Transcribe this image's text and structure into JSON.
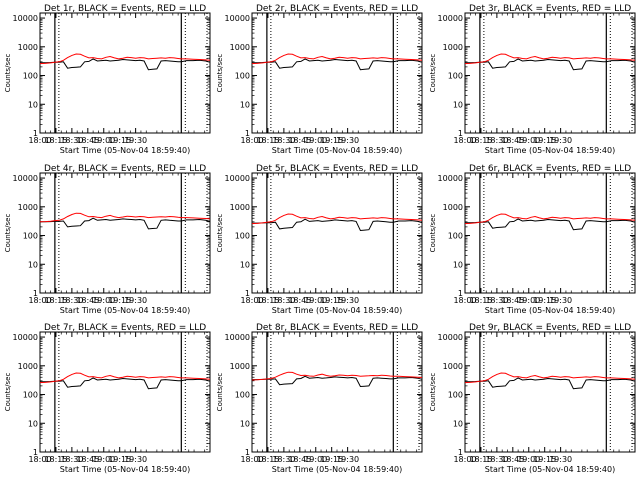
{
  "chart_data": {
    "type": "line",
    "y_scale": "log",
    "ylim": [
      1,
      15000
    ],
    "x_range": [
      "18:00",
      "20:40"
    ],
    "x_tick_labels": [
      "18:00",
      "18:15",
      "18:30",
      "18:45",
      "19:00",
      "19:15",
      "19:30"
    ],
    "y_tick_labels": [
      "1",
      "10",
      "100",
      "1000",
      "10000"
    ],
    "ylabel": "Counts/sec",
    "xlabel": "Start Time (05-Nov-04 18:59:40)",
    "series_colors": {
      "events": "#000000",
      "lld": "#ff0000"
    },
    "boundary_times": [
      "18:14",
      "20:13"
    ],
    "time_points": [
      "18:00",
      "18:05",
      "18:10",
      "18:14",
      "18:18",
      "18:22",
      "18:26",
      "18:30",
      "18:34",
      "18:38",
      "18:42",
      "18:46",
      "18:50",
      "18:54",
      "18:58",
      "19:02",
      "19:06",
      "19:10",
      "19:14",
      "19:18",
      "19:22",
      "19:26",
      "19:30",
      "19:34",
      "19:38",
      "19:42",
      "19:46",
      "19:50",
      "19:54",
      "19:58",
      "20:02",
      "20:06",
      "20:10",
      "20:13",
      "20:18",
      "20:24",
      "20:30",
      "20:36",
      "20:40"
    ],
    "panels": [
      {
        "title": "Det 1r, BLACK = Events, RED = LLD",
        "events": [
          280,
          280,
          285,
          290,
          290,
          300,
          180,
          190,
          195,
          200,
          300,
          310,
          380,
          320,
          330,
          340,
          320,
          330,
          340,
          360,
          350,
          340,
          330,
          340,
          320,
          160,
          165,
          170,
          320,
          330,
          320,
          310,
          300,
          300,
          330,
          330,
          340,
          320,
          290
        ],
        "lld": [
          260,
          265,
          275,
          290,
          300,
          340,
          420,
          500,
          560,
          550,
          470,
          410,
          420,
          390,
          380,
          430,
          460,
          410,
          380,
          400,
          430,
          420,
          400,
          420,
          410,
          380,
          390,
          400,
          410,
          400,
          420,
          410,
          390,
          380,
          380,
          370,
          360,
          350,
          340
        ]
      },
      {
        "title": "Det 2r, BLACK = Events, RED = LLD",
        "events": [
          280,
          280,
          285,
          290,
          290,
          300,
          180,
          190,
          195,
          200,
          300,
          310,
          380,
          320,
          330,
          340,
          320,
          330,
          340,
          360,
          350,
          340,
          330,
          340,
          320,
          160,
          165,
          170,
          320,
          330,
          320,
          310,
          300,
          300,
          330,
          330,
          340,
          320,
          290
        ],
        "lld": [
          260,
          265,
          275,
          290,
          300,
          340,
          420,
          500,
          560,
          550,
          470,
          410,
          420,
          390,
          380,
          430,
          460,
          410,
          380,
          400,
          430,
          420,
          400,
          420,
          410,
          380,
          390,
          400,
          410,
          400,
          420,
          410,
          390,
          380,
          380,
          370,
          360,
          350,
          340
        ]
      },
      {
        "title": "Det 3r, BLACK = Events, RED = LLD",
        "events": [
          280,
          280,
          285,
          290,
          290,
          300,
          180,
          190,
          195,
          200,
          300,
          310,
          380,
          320,
          330,
          340,
          320,
          330,
          340,
          360,
          350,
          340,
          330,
          340,
          320,
          160,
          165,
          170,
          320,
          330,
          320,
          310,
          300,
          300,
          330,
          330,
          340,
          320,
          290
        ],
        "lld": [
          260,
          265,
          275,
          290,
          300,
          340,
          420,
          500,
          560,
          550,
          470,
          410,
          420,
          390,
          380,
          430,
          460,
          410,
          380,
          400,
          430,
          420,
          400,
          420,
          410,
          380,
          390,
          400,
          410,
          400,
          420,
          410,
          390,
          380,
          380,
          370,
          360,
          350,
          340
        ]
      },
      {
        "title": "Det 4r, BLACK = Events, RED = LLD",
        "events": [
          300,
          300,
          305,
          310,
          310,
          320,
          200,
          210,
          215,
          220,
          320,
          330,
          400,
          340,
          350,
          360,
          340,
          350,
          360,
          380,
          370,
          360,
          350,
          360,
          340,
          170,
          175,
          180,
          340,
          350,
          340,
          330,
          320,
          320,
          350,
          350,
          360,
          340,
          310
        ],
        "lld": [
          300,
          305,
          315,
          330,
          340,
          380,
          460,
          540,
          600,
          590,
          510,
          450,
          460,
          430,
          420,
          470,
          500,
          450,
          420,
          440,
          470,
          460,
          440,
          460,
          450,
          420,
          430,
          440,
          450,
          440,
          460,
          450,
          430,
          420,
          420,
          410,
          400,
          390,
          380
        ]
      },
      {
        "title": "Det 5r, BLACK = Events, RED = LLD",
        "events": [
          270,
          270,
          275,
          280,
          280,
          290,
          170,
          180,
          185,
          190,
          290,
          300,
          370,
          310,
          320,
          330,
          310,
          320,
          330,
          350,
          340,
          330,
          320,
          330,
          310,
          150,
          155,
          160,
          310,
          320,
          310,
          300,
          290,
          290,
          320,
          320,
          330,
          310,
          280
        ],
        "lld": [
          260,
          265,
          275,
          290,
          300,
          340,
          420,
          500,
          560,
          550,
          470,
          410,
          420,
          390,
          380,
          430,
          460,
          410,
          380,
          400,
          430,
          420,
          400,
          420,
          410,
          380,
          390,
          400,
          410,
          400,
          420,
          410,
          390,
          380,
          380,
          370,
          360,
          350,
          340
        ]
      },
      {
        "title": "Det 6r, BLACK = Events, RED = LLD",
        "events": [
          280,
          280,
          285,
          290,
          290,
          300,
          180,
          190,
          195,
          200,
          300,
          310,
          380,
          320,
          330,
          340,
          320,
          330,
          340,
          360,
          350,
          340,
          330,
          340,
          320,
          160,
          165,
          170,
          320,
          330,
          320,
          310,
          300,
          300,
          330,
          330,
          340,
          320,
          290
        ],
        "lld": [
          260,
          265,
          275,
          290,
          300,
          340,
          420,
          500,
          560,
          550,
          470,
          410,
          420,
          390,
          380,
          430,
          460,
          410,
          380,
          400,
          430,
          420,
          400,
          420,
          410,
          380,
          390,
          400,
          410,
          400,
          420,
          410,
          390,
          380,
          380,
          370,
          360,
          350,
          340
        ]
      },
      {
        "title": "Det 7r, BLACK = Events, RED = LLD",
        "events": [
          280,
          280,
          285,
          290,
          290,
          300,
          180,
          190,
          195,
          200,
          300,
          310,
          380,
          320,
          330,
          340,
          320,
          330,
          340,
          360,
          350,
          340,
          330,
          340,
          320,
          160,
          165,
          170,
          320,
          330,
          320,
          310,
          300,
          300,
          330,
          330,
          340,
          320,
          290
        ],
        "lld": [
          260,
          265,
          275,
          290,
          300,
          340,
          420,
          500,
          560,
          550,
          470,
          410,
          420,
          390,
          380,
          430,
          460,
          410,
          380,
          400,
          430,
          420,
          400,
          420,
          410,
          380,
          390,
          400,
          410,
          400,
          420,
          410,
          390,
          380,
          380,
          370,
          360,
          350,
          340
        ]
      },
      {
        "title": "Det 8r, BLACK = Events, RED = LLD",
        "events": [
          330,
          330,
          335,
          340,
          340,
          350,
          220,
          230,
          235,
          240,
          350,
          360,
          430,
          370,
          380,
          390,
          370,
          380,
          390,
          410,
          400,
          390,
          380,
          390,
          370,
          190,
          195,
          200,
          370,
          380,
          370,
          360,
          350,
          350,
          380,
          380,
          390,
          370,
          340
        ],
        "lld": [
          320,
          325,
          335,
          350,
          360,
          400,
          470,
          540,
          600,
          590,
          510,
          460,
          470,
          440,
          430,
          480,
          510,
          460,
          430,
          450,
          480,
          470,
          450,
          470,
          460,
          430,
          440,
          450,
          460,
          450,
          470,
          460,
          440,
          430,
          430,
          420,
          410,
          400,
          390
        ]
      },
      {
        "title": "Det 9r, BLACK = Events, RED = LLD",
        "events": [
          280,
          280,
          285,
          290,
          290,
          300,
          180,
          190,
          195,
          200,
          300,
          310,
          380,
          320,
          330,
          340,
          320,
          330,
          340,
          360,
          350,
          340,
          330,
          340,
          320,
          160,
          165,
          170,
          320,
          330,
          320,
          310,
          300,
          300,
          330,
          330,
          340,
          320,
          290
        ],
        "lld": [
          260,
          265,
          275,
          290,
          300,
          340,
          420,
          500,
          560,
          550,
          470,
          410,
          420,
          390,
          380,
          430,
          460,
          410,
          380,
          400,
          430,
          420,
          400,
          420,
          410,
          380,
          390,
          400,
          410,
          400,
          420,
          410,
          390,
          380,
          380,
          370,
          360,
          350,
          340
        ]
      }
    ]
  }
}
